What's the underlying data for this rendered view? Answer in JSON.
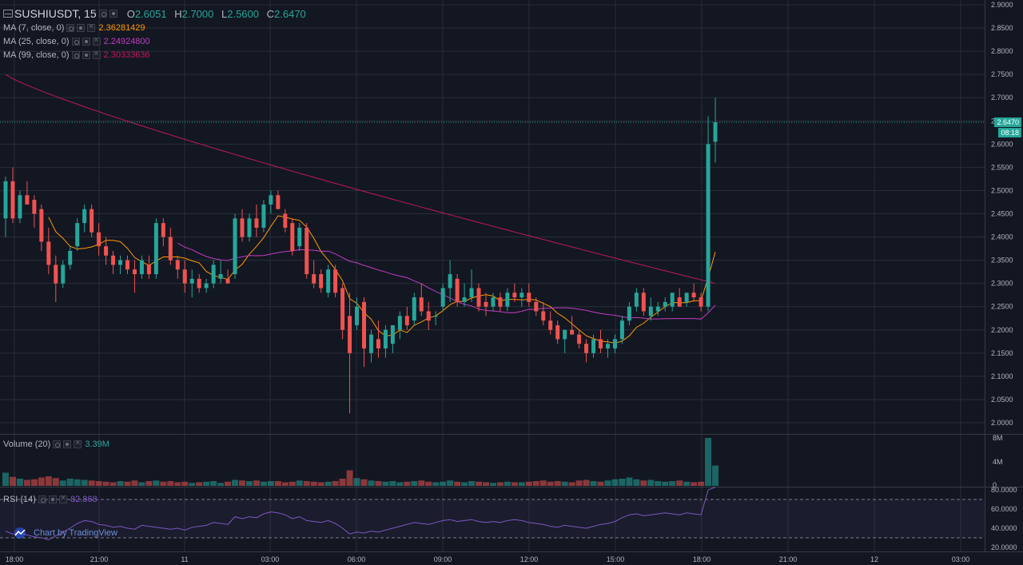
{
  "header": {
    "symbol": "SUSHIUSDT, 15",
    "ohlc": [
      {
        "k": "O",
        "v": "2.6051"
      },
      {
        "k": "H",
        "v": "2.7000"
      },
      {
        "k": "L",
        "v": "2.5600"
      },
      {
        "k": "C",
        "v": "2.6470"
      }
    ]
  },
  "indicators": [
    {
      "label": "MA (7, close, 0)",
      "value": "2.36281429",
      "color": "#ff9800"
    },
    {
      "label": "MA (25, close, 0)",
      "value": "2.24924800",
      "color": "#c13cc1"
    },
    {
      "label": "MA (99, close, 0)",
      "value": "2.30333636",
      "color": "#c2185b"
    }
  ],
  "volume_legend": {
    "label": "Volume (20)",
    "value": "3.39M"
  },
  "rsi_legend": {
    "label": "RSI (14)",
    "value": "82.868"
  },
  "brand": "Chart by TradingView",
  "last_price": {
    "price": "2.6470",
    "countdown": "08:18"
  },
  "colors": {
    "up": "#26a69a",
    "down": "#ef5350",
    "background": "#131722",
    "grid": "#2a2e39",
    "rsi": "#7e57c2"
  },
  "chart_data": {
    "type": "candlestick",
    "interval": "15",
    "price_axis": {
      "min": 1.99,
      "max": 2.9,
      "ticks": [
        "2.9000",
        "2.8500",
        "2.8000",
        "2.7500",
        "2.7000",
        "2.6500",
        "2.6000",
        "2.5500",
        "2.5000",
        "2.4500",
        "2.4000",
        "2.3500",
        "2.3000",
        "2.2500",
        "2.2000",
        "2.1500",
        "2.1000",
        "2.0500",
        "2.0000"
      ]
    },
    "time_axis": {
      "labels": [
        "18:00",
        "21:00",
        "11",
        "03:00",
        "06:00",
        "09:00",
        "12:00",
        "15:00",
        "18:00",
        "21:00",
        "12",
        "03:00"
      ]
    },
    "volume_axis": {
      "ticks": [
        "8M",
        "4M",
        "0"
      ]
    },
    "rsi_axis": {
      "ticks": [
        "80.0000",
        "60.0000",
        "40.0000",
        "20.0000"
      ],
      "bands": [
        70,
        30
      ]
    },
    "candles": [
      [
        2.44,
        2.53,
        2.4,
        2.52
      ],
      [
        2.52,
        2.55,
        2.43,
        2.44
      ],
      [
        2.44,
        2.5,
        2.43,
        2.49
      ],
      [
        2.49,
        2.52,
        2.47,
        2.47
      ],
      [
        2.48,
        2.49,
        2.42,
        2.45
      ],
      [
        2.46,
        2.47,
        2.37,
        2.39
      ],
      [
        2.39,
        2.42,
        2.32,
        2.34
      ],
      [
        2.34,
        2.36,
        2.26,
        2.3
      ],
      [
        2.3,
        2.35,
        2.29,
        2.34
      ],
      [
        2.34,
        2.38,
        2.33,
        2.37
      ],
      [
        2.38,
        2.44,
        2.37,
        2.43
      ],
      [
        2.43,
        2.47,
        2.41,
        2.46
      ],
      [
        2.46,
        2.47,
        2.4,
        2.41
      ],
      [
        2.41,
        2.43,
        2.36,
        2.38
      ],
      [
        2.38,
        2.4,
        2.34,
        2.36
      ],
      [
        2.36,
        2.37,
        2.32,
        2.34
      ],
      [
        2.34,
        2.36,
        2.32,
        2.35
      ],
      [
        2.35,
        2.36,
        2.32,
        2.33
      ],
      [
        2.33,
        2.35,
        2.28,
        2.32
      ],
      [
        2.32,
        2.36,
        2.31,
        2.35
      ],
      [
        2.34,
        2.36,
        2.31,
        2.32
      ],
      [
        2.32,
        2.44,
        2.31,
        2.43
      ],
      [
        2.43,
        2.44,
        2.38,
        2.4
      ],
      [
        2.4,
        2.42,
        2.34,
        2.35
      ],
      [
        2.35,
        2.36,
        2.31,
        2.33
      ],
      [
        2.33,
        2.35,
        2.28,
        2.3
      ],
      [
        2.3,
        2.33,
        2.27,
        2.31
      ],
      [
        2.31,
        2.32,
        2.28,
        2.29
      ],
      [
        2.29,
        2.31,
        2.28,
        2.3
      ],
      [
        2.3,
        2.35,
        2.29,
        2.34
      ],
      [
        2.31,
        2.35,
        2.3,
        2.32
      ],
      [
        2.31,
        2.33,
        2.3,
        2.3
      ],
      [
        2.32,
        2.45,
        2.31,
        2.44
      ],
      [
        2.44,
        2.46,
        2.39,
        2.4
      ],
      [
        2.4,
        2.45,
        2.39,
        2.44
      ],
      [
        2.44,
        2.47,
        2.4,
        2.42
      ],
      [
        2.42,
        2.48,
        2.41,
        2.47
      ],
      [
        2.47,
        2.5,
        2.45,
        2.49
      ],
      [
        2.49,
        2.5,
        2.46,
        2.46
      ],
      [
        2.45,
        2.46,
        2.41,
        2.42
      ],
      [
        2.43,
        2.44,
        2.36,
        2.37
      ],
      [
        2.38,
        2.43,
        2.37,
        2.42
      ],
      [
        2.42,
        2.43,
        2.31,
        2.32
      ],
      [
        2.32,
        2.35,
        2.29,
        2.3
      ],
      [
        2.32,
        2.33,
        2.28,
        2.29
      ],
      [
        2.28,
        2.34,
        2.27,
        2.33
      ],
      [
        2.33,
        2.34,
        2.27,
        2.28
      ],
      [
        2.29,
        2.3,
        2.18,
        2.2
      ],
      [
        2.23,
        2.28,
        2.02,
        2.15
      ],
      [
        2.21,
        2.27,
        2.2,
        2.25
      ],
      [
        2.26,
        2.27,
        2.12,
        2.16
      ],
      [
        2.15,
        2.2,
        2.13,
        2.19
      ],
      [
        2.18,
        2.22,
        2.14,
        2.16
      ],
      [
        2.16,
        2.21,
        2.14,
        2.2
      ],
      [
        2.17,
        2.21,
        2.15,
        2.21
      ],
      [
        2.2,
        2.24,
        2.18,
        2.23
      ],
      [
        2.23,
        2.25,
        2.2,
        2.21
      ],
      [
        2.22,
        2.28,
        2.21,
        2.27
      ],
      [
        2.27,
        2.3,
        2.23,
        2.24
      ],
      [
        2.24,
        2.26,
        2.2,
        2.22
      ],
      [
        2.23,
        2.24,
        2.21,
        2.23
      ],
      [
        2.25,
        2.3,
        2.24,
        2.29
      ],
      [
        2.29,
        2.35,
        2.26,
        2.32
      ],
      [
        2.31,
        2.32,
        2.25,
        2.26
      ],
      [
        2.26,
        2.3,
        2.25,
        2.27
      ],
      [
        2.27,
        2.33,
        2.26,
        2.29
      ],
      [
        2.29,
        2.3,
        2.24,
        2.25
      ],
      [
        2.26,
        2.28,
        2.23,
        2.25
      ],
      [
        2.25,
        2.28,
        2.24,
        2.27
      ],
      [
        2.27,
        2.28,
        2.24,
        2.25
      ],
      [
        2.25,
        2.29,
        2.24,
        2.28
      ],
      [
        2.28,
        2.3,
        2.26,
        2.27
      ],
      [
        2.27,
        2.29,
        2.25,
        2.28
      ],
      [
        2.28,
        2.3,
        2.25,
        2.26
      ],
      [
        2.26,
        2.27,
        2.23,
        2.24
      ],
      [
        2.24,
        2.26,
        2.21,
        2.22
      ],
      [
        2.22,
        2.24,
        2.19,
        2.2
      ],
      [
        2.21,
        2.22,
        2.17,
        2.18
      ],
      [
        2.18,
        2.2,
        2.15,
        2.2
      ],
      [
        2.2,
        2.23,
        2.19,
        2.19
      ],
      [
        2.19,
        2.2,
        2.16,
        2.17
      ],
      [
        2.17,
        2.18,
        2.13,
        2.15
      ],
      [
        2.15,
        2.19,
        2.14,
        2.18
      ],
      [
        2.18,
        2.2,
        2.15,
        2.16
      ],
      [
        2.16,
        2.18,
        2.14,
        2.17
      ],
      [
        2.16,
        2.19,
        2.15,
        2.18
      ],
      [
        2.18,
        2.23,
        2.17,
        2.22
      ],
      [
        2.22,
        2.26,
        2.21,
        2.25
      ],
      [
        2.25,
        2.29,
        2.24,
        2.28
      ],
      [
        2.28,
        2.29,
        2.23,
        2.24
      ],
      [
        2.23,
        2.27,
        2.22,
        2.25
      ],
      [
        2.24,
        2.26,
        2.23,
        2.25
      ],
      [
        2.25,
        2.27,
        2.24,
        2.26
      ],
      [
        2.25,
        2.28,
        2.24,
        2.28
      ],
      [
        2.27,
        2.29,
        2.25,
        2.25
      ],
      [
        2.26,
        2.28,
        2.25,
        2.28
      ],
      [
        2.28,
        2.3,
        2.26,
        2.27
      ],
      [
        2.27,
        2.28,
        2.24,
        2.25
      ],
      [
        2.25,
        2.66,
        2.24,
        2.6
      ],
      [
        2.6051,
        2.7,
        2.56,
        2.647
      ]
    ],
    "volume_millions": [
      2.2,
      1.5,
      1.2,
      1.0,
      1.1,
      1.4,
      1.6,
      1.3,
      0.9,
      1.2,
      1.1,
      1.0,
      0.9,
      0.8,
      0.7,
      0.6,
      0.8,
      0.7,
      0.9,
      0.6,
      0.8,
      0.9,
      0.7,
      0.8,
      0.6,
      0.7,
      0.5,
      0.6,
      0.7,
      0.8,
      0.5,
      0.7,
      1.0,
      0.9,
      0.8,
      0.9,
      0.7,
      0.8,
      0.8,
      0.6,
      0.7,
      0.9,
      0.8,
      0.7,
      0.6,
      0.7,
      0.8,
      1.2,
      2.6,
      1.3,
      1.1,
      0.9,
      0.8,
      0.7,
      0.8,
      0.6,
      0.7,
      0.8,
      0.9,
      0.7,
      0.6,
      0.7,
      0.9,
      0.7,
      0.6,
      0.8,
      0.7,
      0.6,
      0.5,
      0.6,
      0.7,
      0.6,
      0.6,
      0.7,
      0.8,
      0.9,
      0.7,
      0.8,
      0.7,
      0.6,
      0.9,
      1.0,
      0.8,
      0.7,
      0.9,
      1.1,
      1.2,
      1.4,
      1.1,
      0.9,
      1.0,
      0.8,
      0.7,
      0.8,
      0.9,
      0.7,
      0.6,
      0.7,
      8.0,
      3.39
    ],
    "rsi": [
      37,
      34,
      35,
      33,
      31,
      30,
      28,
      32,
      36,
      40,
      45,
      48,
      47,
      44,
      43,
      41,
      42,
      40,
      39,
      43,
      42,
      41,
      40,
      39,
      40,
      38,
      41,
      42,
      43,
      46,
      45,
      44,
      52,
      50,
      52,
      51,
      55,
      57,
      56,
      54,
      50,
      52,
      48,
      47,
      46,
      48,
      45,
      40,
      34,
      36,
      35,
      37,
      36,
      38,
      40,
      42,
      44,
      46,
      45,
      44,
      46,
      48,
      49,
      47,
      48,
      49,
      47,
      46,
      47,
      46,
      48,
      49,
      48,
      46,
      45,
      44,
      42,
      41,
      43,
      42,
      41,
      40,
      42,
      44,
      45,
      47,
      51,
      54,
      55,
      53,
      54,
      55,
      56,
      55,
      54,
      56,
      55,
      54,
      80,
      82.868
    ]
  }
}
